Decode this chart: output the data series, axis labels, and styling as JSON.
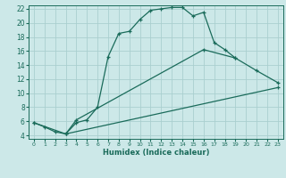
{
  "xlabel": "Humidex (Indice chaleur)",
  "bg_color": "#cce8e8",
  "grid_color": "#aacfcf",
  "line_color": "#1a6b5a",
  "xlim": [
    -0.5,
    23.5
  ],
  "ylim": [
    3.5,
    22.5
  ],
  "xticks": [
    0,
    1,
    2,
    3,
    4,
    5,
    6,
    7,
    8,
    9,
    10,
    11,
    12,
    13,
    14,
    15,
    16,
    17,
    18,
    19,
    20,
    21,
    22,
    23
  ],
  "yticks": [
    4,
    6,
    8,
    10,
    12,
    14,
    16,
    18,
    20,
    22
  ],
  "line1_x": [
    0,
    1,
    2,
    3,
    4,
    5,
    6,
    7,
    8,
    9,
    10,
    11,
    12,
    13,
    14,
    15,
    16,
    17,
    18,
    19
  ],
  "line1_y": [
    5.8,
    5.2,
    4.5,
    4.2,
    5.8,
    6.2,
    8.0,
    15.2,
    18.5,
    18.8,
    20.5,
    21.8,
    22.0,
    22.2,
    22.2,
    21.0,
    21.5,
    17.2,
    16.2,
    15.0
  ],
  "line2_x": [
    0,
    3,
    4,
    16,
    19,
    21,
    23
  ],
  "line2_y": [
    5.8,
    4.2,
    6.2,
    16.2,
    15.0,
    13.2,
    11.5
  ],
  "line3_x": [
    3,
    23
  ],
  "line3_y": [
    4.2,
    10.8
  ]
}
